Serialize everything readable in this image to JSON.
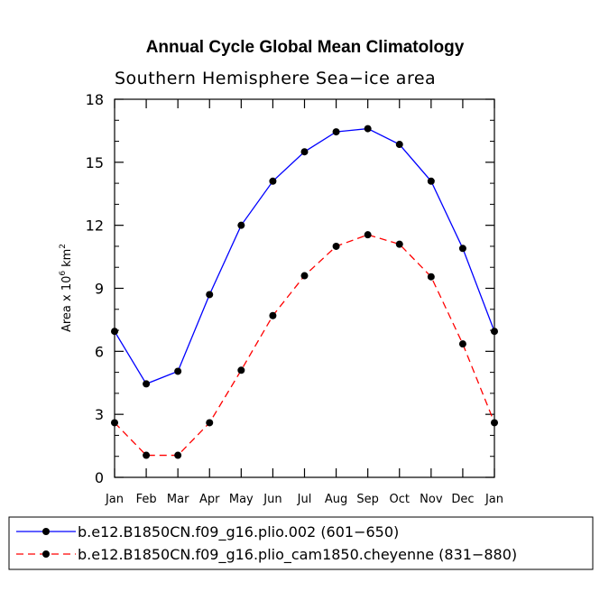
{
  "chart_data": {
    "type": "line",
    "title": "Annual Cycle Global Mean Climatology",
    "subtitle": "Southern Hemisphere Sea−ice area",
    "ylabel": "Area x 10",
    "ylabel_exp": "6",
    "ylabel_unit": "km",
    "ylabel_unit_exp": "2",
    "xlabel": "",
    "ylim": [
      0,
      18
    ],
    "yticks": [
      0,
      3,
      6,
      9,
      12,
      15,
      18
    ],
    "categories": [
      "Jan",
      "Feb",
      "Mar",
      "Apr",
      "May",
      "Jun",
      "Jul",
      "Aug",
      "Sep",
      "Oct",
      "Nov",
      "Dec",
      "Jan"
    ],
    "grid": false,
    "legend_position": "bottom",
    "series": [
      {
        "name": "b.e12.B1850CN.f09_g16.plio.002 (601−650)",
        "color": "#0000ff",
        "style": "solid",
        "values": [
          6.95,
          4.45,
          5.05,
          8.7,
          12.0,
          14.1,
          15.5,
          16.45,
          16.6,
          15.85,
          14.1,
          10.9,
          6.95
        ]
      },
      {
        "name": "b.e12.B1850CN.f09_g16.plio_cam1850.cheyenne (831−880)",
        "color": "#ff0000",
        "style": "dashed",
        "values": [
          2.6,
          1.05,
          1.05,
          2.6,
          5.1,
          7.7,
          9.6,
          11.0,
          11.55,
          11.1,
          9.55,
          6.35,
          2.6
        ]
      }
    ]
  }
}
